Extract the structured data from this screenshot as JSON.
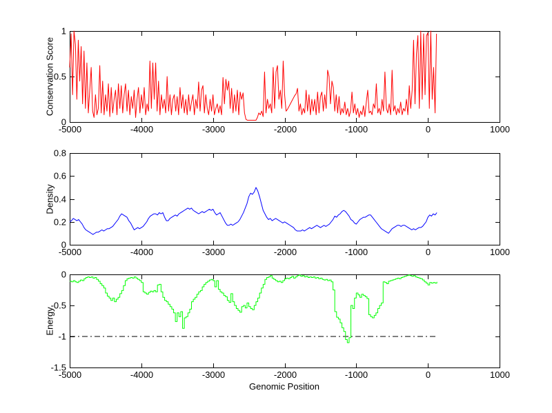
{
  "figure": {
    "background": "#ffffff",
    "axis_color": "#000000",
    "xlabel": "Genomic Position"
  },
  "plots": [
    {
      "ylabel": "Conservation Score"
    },
    {
      "ylabel": "Density"
    },
    {
      "ylabel": "Energy"
    }
  ],
  "chart_data": [
    {
      "type": "line",
      "title": "",
      "xlabel": "",
      "ylabel": "Conservation Score",
      "line_color": "#ff0000",
      "line_style": "solid",
      "grid": false,
      "legend": null,
      "xlim": [
        -5000,
        1000
      ],
      "ylim": [
        0,
        1
      ],
      "x_ticks": [
        -5000,
        -4000,
        -3000,
        -2000,
        -1000,
        0,
        1000
      ],
      "y_ticks": [
        0,
        0.5,
        1
      ],
      "x_start": -5000,
      "x_step": 20,
      "values": [
        0.6,
        0.97,
        0.3,
        1.0,
        0.85,
        0.25,
        0.9,
        0.45,
        0.83,
        0.2,
        0.78,
        0.15,
        0.65,
        0.1,
        0.35,
        0.6,
        0.12,
        0.05,
        0.3,
        0.08,
        0.15,
        0.62,
        0.1,
        0.45,
        0.08,
        0.3,
        0.12,
        0.42,
        0.06,
        0.38,
        0.1,
        0.25,
        0.35,
        0.08,
        0.42,
        0.15,
        0.4,
        0.1,
        0.3,
        0.42,
        0.12,
        0.35,
        0.08,
        0.28,
        0.15,
        0.35,
        0.05,
        0.25,
        0.38,
        0.1,
        0.3,
        0.15,
        0.38,
        0.08,
        0.2,
        0.12,
        0.67,
        0.15,
        0.65,
        0.25,
        0.65,
        0.12,
        0.45,
        0.08,
        0.3,
        0.15,
        0.25,
        0.1,
        0.5,
        0.12,
        0.3,
        0.08,
        0.25,
        0.3,
        0.12,
        0.28,
        0.08,
        0.38,
        0.15,
        0.3,
        0.1,
        0.25,
        0.08,
        0.3,
        0.12,
        0.22,
        0.3,
        0.08,
        0.25,
        0.15,
        0.44,
        0.12,
        0.35,
        0.4,
        0.1,
        0.3,
        0.15,
        0.08,
        0.25,
        0.12,
        0.3,
        0.08,
        0.15,
        0.2,
        0.1,
        0.18,
        0.08,
        0.49,
        0.2,
        0.47,
        0.35,
        0.45,
        0.15,
        0.37,
        0.1,
        0.3,
        0.12,
        0.35,
        0.08,
        0.33,
        0.25,
        0.32,
        0.1,
        0.03,
        0.02,
        0.02,
        0.02,
        0.02,
        0.02,
        0.02,
        0.02,
        0.05,
        0.1,
        0.08,
        0.12,
        0.06,
        0.55,
        0.1,
        0.25,
        0.15,
        0.2,
        0.1,
        0.6,
        0.15,
        0.55,
        0.62,
        0.25,
        0.35,
        0.15,
        0.67,
        0.3,
        0.12,
        0.14,
        0.17,
        0.2,
        0.23,
        0.26,
        0.29,
        0.31,
        0.37,
        0.12,
        0.2,
        0.08,
        0.15,
        0.1,
        0.35,
        0.12,
        0.3,
        0.08,
        0.25,
        0.12,
        0.25,
        0.08,
        0.33,
        0.1,
        0.28,
        0.33,
        0.12,
        0.3,
        0.15,
        0.57,
        0.5,
        0.2,
        0.45,
        0.38,
        0.12,
        0.3,
        0.1,
        0.28,
        0.08,
        0.15,
        0.1,
        0.22,
        0.08,
        0.15,
        0.06,
        0.12,
        0.33,
        0.1,
        0.2,
        0.08,
        0.15,
        0.05,
        0.12,
        0.08,
        0.18,
        0.06,
        0.22,
        0.35,
        0.1,
        0.12,
        0.08,
        0.2,
        0.15,
        0.42,
        0.1,
        0.15,
        0.08,
        0.25,
        0.12,
        0.55,
        0.15,
        0.1,
        0.2,
        0.08,
        0.57,
        0.12,
        0.18,
        0.08,
        0.15,
        0.1,
        0.22,
        0.08,
        0.15,
        0.12,
        0.25,
        0.08,
        0.4,
        0.15,
        0.35,
        0.9,
        0.2,
        0.75,
        0.95,
        0.15,
        1.0,
        0.25,
        0.97,
        0.3,
        0.95,
        0.98,
        0.15,
        1.0,
        0.25,
        0.6,
        0.1,
        0.97
      ]
    },
    {
      "type": "line",
      "title": "",
      "xlabel": "",
      "ylabel": "Density",
      "line_color": "#0000ff",
      "line_style": "solid",
      "grid": false,
      "legend": null,
      "xlim": [
        -5000,
        1000
      ],
      "ylim": [
        0,
        0.8
      ],
      "x_ticks": [
        -5000,
        -4000,
        -3000,
        -2000,
        -1000,
        0,
        1000
      ],
      "y_ticks": [
        0,
        0.2,
        0.4,
        0.6,
        0.8
      ],
      "x_start": -5000,
      "x_step": 25,
      "values": [
        0.2,
        0.21,
        0.23,
        0.22,
        0.21,
        0.22,
        0.2,
        0.18,
        0.15,
        0.13,
        0.12,
        0.11,
        0.1,
        0.09,
        0.1,
        0.11,
        0.11,
        0.12,
        0.13,
        0.12,
        0.13,
        0.14,
        0.14,
        0.15,
        0.16,
        0.18,
        0.2,
        0.22,
        0.25,
        0.27,
        0.26,
        0.25,
        0.24,
        0.21,
        0.19,
        0.16,
        0.13,
        0.14,
        0.15,
        0.14,
        0.15,
        0.16,
        0.18,
        0.2,
        0.23,
        0.25,
        0.26,
        0.27,
        0.27,
        0.26,
        0.28,
        0.27,
        0.28,
        0.24,
        0.21,
        0.21,
        0.23,
        0.24,
        0.25,
        0.26,
        0.25,
        0.27,
        0.28,
        0.29,
        0.3,
        0.31,
        0.32,
        0.31,
        0.32,
        0.3,
        0.29,
        0.28,
        0.27,
        0.28,
        0.29,
        0.28,
        0.29,
        0.3,
        0.31,
        0.3,
        0.31,
        0.28,
        0.26,
        0.27,
        0.28,
        0.25,
        0.22,
        0.19,
        0.17,
        0.17,
        0.18,
        0.17,
        0.18,
        0.19,
        0.2,
        0.22,
        0.25,
        0.28,
        0.32,
        0.36,
        0.42,
        0.45,
        0.44,
        0.46,
        0.5,
        0.47,
        0.42,
        0.36,
        0.3,
        0.27,
        0.24,
        0.22,
        0.23,
        0.21,
        0.22,
        0.23,
        0.22,
        0.21,
        0.2,
        0.19,
        0.2,
        0.19,
        0.18,
        0.17,
        0.16,
        0.15,
        0.13,
        0.12,
        0.12,
        0.12,
        0.13,
        0.12,
        0.13,
        0.14,
        0.15,
        0.14,
        0.15,
        0.16,
        0.17,
        0.16,
        0.15,
        0.16,
        0.17,
        0.16,
        0.17,
        0.18,
        0.2,
        0.22,
        0.25,
        0.24,
        0.26,
        0.27,
        0.29,
        0.3,
        0.29,
        0.27,
        0.25,
        0.22,
        0.21,
        0.19,
        0.18,
        0.2,
        0.22,
        0.23,
        0.24,
        0.24,
        0.25,
        0.26,
        0.26,
        0.24,
        0.22,
        0.2,
        0.18,
        0.16,
        0.14,
        0.13,
        0.12,
        0.11,
        0.1,
        0.12,
        0.14,
        0.15,
        0.16,
        0.17,
        0.17,
        0.16,
        0.17,
        0.17,
        0.16,
        0.15,
        0.14,
        0.13,
        0.14,
        0.13,
        0.14,
        0.15,
        0.15,
        0.16,
        0.18,
        0.2,
        0.24,
        0.26,
        0.25,
        0.27,
        0.26,
        0.28
      ]
    },
    {
      "type": "line",
      "title": "",
      "xlabel": "Genomic Position",
      "ylabel": "Energy",
      "line_color": "#00ff00",
      "line_style": "stairs",
      "grid": false,
      "legend": null,
      "xlim": [
        -5000,
        1000
      ],
      "ylim": [
        -1.5,
        0
      ],
      "x_ticks": [
        -5000,
        -4000,
        -3000,
        -2000,
        -1000,
        0,
        1000
      ],
      "y_ticks": [
        -1.5,
        -1,
        -0.5,
        0
      ],
      "x_start": -5000,
      "x_step": 25,
      "values": [
        -0.11,
        -0.12,
        -0.1,
        -0.12,
        -0.13,
        -0.11,
        -0.09,
        -0.1,
        -0.07,
        -0.05,
        -0.04,
        -0.05,
        -0.04,
        -0.06,
        -0.05,
        -0.08,
        -0.11,
        -0.15,
        -0.18,
        -0.22,
        -0.3,
        -0.35,
        -0.38,
        -0.42,
        -0.38,
        -0.44,
        -0.4,
        -0.37,
        -0.31,
        -0.26,
        -0.18,
        -0.1,
        -0.07,
        -0.06,
        -0.05,
        -0.06,
        -0.04,
        -0.06,
        -0.08,
        -0.1,
        -0.13,
        -0.28,
        -0.3,
        -0.32,
        -0.29,
        -0.27,
        -0.28,
        -0.26,
        -0.28,
        -0.17,
        -0.16,
        -0.28,
        -0.37,
        -0.42,
        -0.44,
        -0.48,
        -0.52,
        -0.56,
        -0.62,
        -0.76,
        -0.62,
        -0.68,
        -0.6,
        -0.87,
        -0.7,
        -0.68,
        -0.62,
        -0.56,
        -0.44,
        -0.4,
        -0.37,
        -0.32,
        -0.28,
        -0.26,
        -0.2,
        -0.16,
        -0.13,
        -0.11,
        -0.09,
        -0.08,
        -0.1,
        -0.2,
        -0.1,
        -0.24,
        -0.28,
        -0.3,
        -0.34,
        -0.36,
        -0.42,
        -0.45,
        -0.31,
        -0.44,
        -0.5,
        -0.55,
        -0.58,
        -0.61,
        -0.52,
        -0.5,
        -0.54,
        -0.46,
        -0.52,
        -0.55,
        -0.57,
        -0.5,
        -0.44,
        -0.38,
        -0.3,
        -0.22,
        -0.16,
        -0.08,
        -0.05,
        -0.04,
        -0.02,
        -0.06,
        -0.08,
        -0.1,
        -0.12,
        -0.11,
        -0.13,
        -0.1,
        -0.07,
        -0.06,
        -0.07,
        -0.05,
        -0.03,
        -0.06,
        -0.04,
        -0.02,
        -0.01,
        -0.03,
        -0.02,
        -0.04,
        -0.03,
        -0.05,
        -0.04,
        -0.05,
        -0.04,
        -0.06,
        -0.05,
        -0.07,
        -0.06,
        -0.08,
        -0.09,
        -0.08,
        -0.1,
        -0.09,
        -0.12,
        -0.25,
        -0.6,
        -0.69,
        -0.72,
        -0.78,
        -0.86,
        -0.92,
        -1.05,
        -1.1,
        -1.02,
        -0.5,
        -0.55,
        -0.38,
        -0.3,
        -0.33,
        -0.37,
        -0.32,
        -0.34,
        -0.36,
        -0.39,
        -0.65,
        -0.68,
        -0.7,
        -0.66,
        -0.62,
        -0.55,
        -0.5,
        -0.46,
        -0.12,
        -0.13,
        -0.15,
        -0.11,
        -0.1,
        -0.09,
        -0.08,
        -0.07,
        -0.06,
        -0.07,
        -0.05,
        -0.04,
        -0.03,
        -0.02,
        -0.01,
        -0.02,
        -0.03,
        -0.02,
        -0.04,
        -0.05,
        -0.06,
        -0.07,
        -0.09,
        -0.12,
        -0.14,
        -0.17,
        -0.13,
        -0.14,
        -0.13,
        -0.14,
        -0.12
      ],
      "reference_line": {
        "y": -1,
        "style": "dash-dot",
        "color": "#000000",
        "x_range": [
          -5000,
          110
        ]
      }
    }
  ]
}
